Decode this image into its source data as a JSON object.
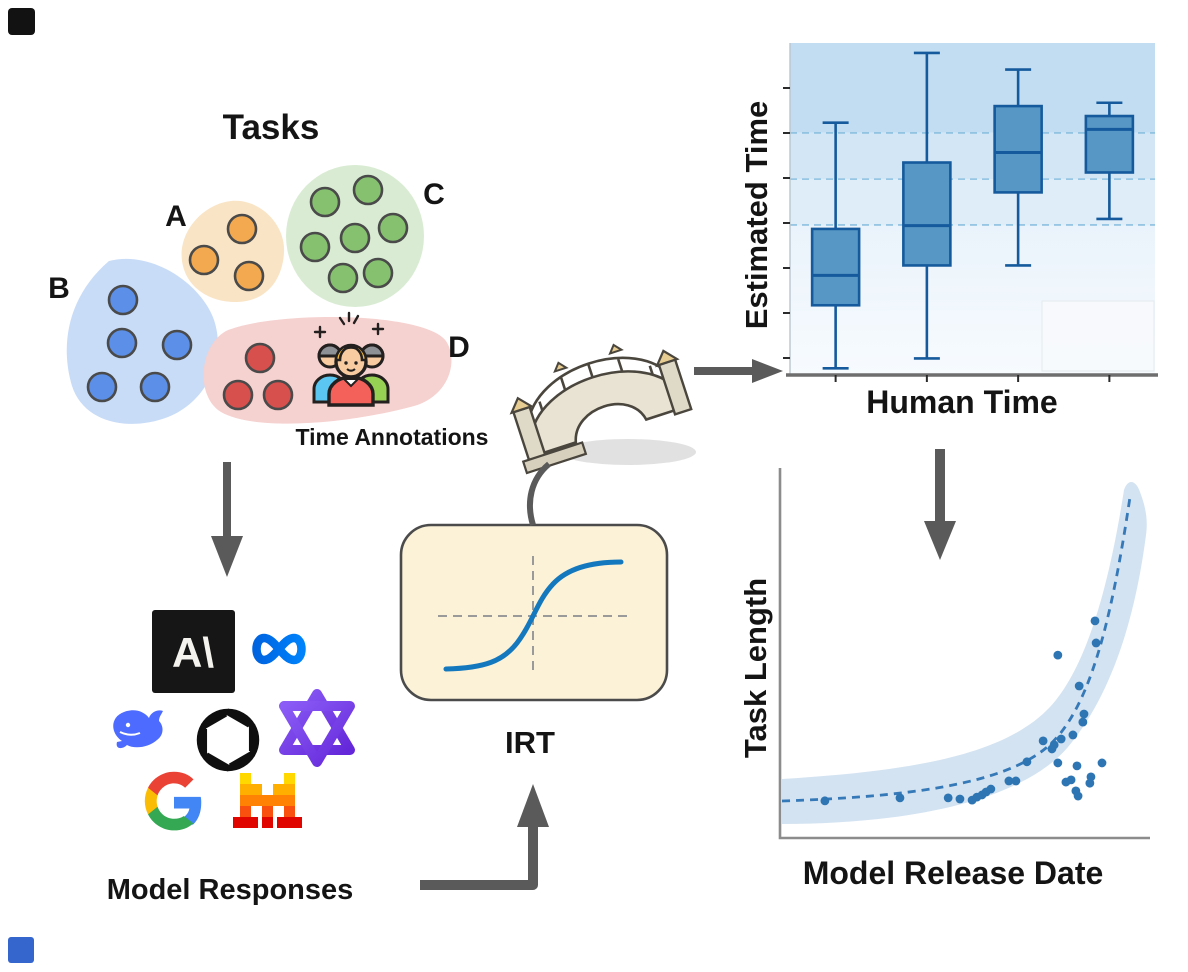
{
  "figure": {
    "tasks_title": "Tasks",
    "cluster_labels": {
      "a": "A",
      "b": "B",
      "c": "C",
      "d": "D"
    },
    "time_annotations_label": "Time Annotations",
    "model_responses_label": "Model Responses",
    "irt_label": "IRT"
  },
  "logos": {
    "names": [
      "anthropic",
      "meta",
      "deepseek",
      "openai",
      "qwen",
      "google",
      "mistral"
    ],
    "anthropic_glyph": "A\\",
    "meta_glyph": "∞"
  },
  "colors": {
    "cluster_a_blob": "#F9E4C6",
    "cluster_a_dot": "#F2A94F",
    "cluster_b_blob": "#C8DCF7",
    "cluster_b_dot": "#5B8FE8",
    "cluster_c_blob": "#D9ECD3",
    "cluster_c_dot": "#85C16F",
    "cluster_d_blob": "#F5D1CF",
    "cluster_d_dot": "#D8504D",
    "arrow_gray": "#5A5A5A",
    "irt_box_fill": "#FBF2D7",
    "sigmoid_blue": "#1478BE",
    "box_fill": "#5697C6",
    "box_stroke": "#155A9C",
    "scatter_dot": "#2E75B4",
    "trend_blue": "#3579B8",
    "band_blue": "#C8DCEE"
  },
  "diagram": {
    "clusters": [
      {
        "label": "A",
        "dot_color": "#F2A94F",
        "dots": [
          [
            242,
            229
          ],
          [
            204,
            260
          ],
          [
            249,
            276
          ]
        ]
      },
      {
        "label": "B",
        "dot_color": "#5B8FE8",
        "dots": [
          [
            123,
            300
          ],
          [
            122,
            343
          ],
          [
            177,
            345
          ],
          [
            102,
            387
          ],
          [
            155,
            387
          ]
        ]
      },
      {
        "label": "C",
        "dot_color": "#85C16F",
        "dots": [
          [
            325,
            202
          ],
          [
            368,
            190
          ],
          [
            355,
            238
          ],
          [
            393,
            228
          ],
          [
            315,
            247
          ],
          [
            343,
            278
          ],
          [
            378,
            273
          ]
        ]
      },
      {
        "label": "D",
        "dot_color": "#D8504D",
        "dots": [
          [
            260,
            358
          ],
          [
            238,
            395
          ],
          [
            278,
            395
          ]
        ]
      }
    ]
  },
  "chart_data": [
    {
      "type": "box",
      "title": "",
      "xlabel": "Human Time",
      "ylabel": "Estimated Time",
      "x_tick_labels": [],
      "y_tick_labels": [],
      "ylim": [
        0,
        1
      ],
      "gridlines_y": [
        0.452,
        0.59,
        0.729
      ],
      "grid": "dashed-horizontal",
      "background": "blue gradient, darker at top",
      "boxes": [
        {
          "whisker_low": 0.02,
          "q1": 0.21,
          "median": 0.3,
          "q3": 0.44,
          "whisker_high": 0.76
        },
        {
          "whisker_low": 0.05,
          "q1": 0.33,
          "median": 0.45,
          "q3": 0.64,
          "whisker_high": 0.97
        },
        {
          "whisker_low": 0.33,
          "q1": 0.55,
          "median": 0.67,
          "q3": 0.81,
          "whisker_high": 0.92
        },
        {
          "whisker_low": 0.47,
          "q1": 0.61,
          "median": 0.74,
          "q3": 0.78,
          "whisker_high": 0.82
        }
      ]
    },
    {
      "type": "scatter",
      "title": "",
      "xlabel": "Model Release Date",
      "ylabel": "Task Length",
      "x_tick_labels": [],
      "y_tick_labels": [],
      "trend": "exponential dashed fit with confidence band",
      "legend": "none",
      "points": [
        [
          0.122,
          0.101
        ],
        [
          0.326,
          0.109
        ],
        [
          0.457,
          0.109
        ],
        [
          0.489,
          0.106
        ],
        [
          0.522,
          0.103
        ],
        [
          0.535,
          0.111
        ],
        [
          0.549,
          0.117
        ],
        [
          0.56,
          0.125
        ],
        [
          0.573,
          0.133
        ],
        [
          0.622,
          0.155
        ],
        [
          0.641,
          0.155
        ],
        [
          0.671,
          0.207
        ],
        [
          0.715,
          0.264
        ],
        [
          0.739,
          0.242
        ],
        [
          0.745,
          0.253
        ],
        [
          0.755,
          0.204
        ],
        [
          0.764,
          0.269
        ],
        [
          0.777,
          0.152
        ],
        [
          0.791,
          0.158
        ],
        [
          0.796,
          0.28
        ],
        [
          0.804,
          0.128
        ],
        [
          0.81,
          0.114
        ],
        [
          0.807,
          0.196
        ],
        [
          0.823,
          0.315
        ],
        [
          0.826,
          0.337
        ],
        [
          0.842,
          0.149
        ],
        [
          0.845,
          0.166
        ],
        [
          0.856,
          0.59
        ],
        [
          0.859,
          0.53
        ],
        [
          0.875,
          0.204
        ],
        [
          0.755,
          0.497
        ],
        [
          0.813,
          0.413
        ]
      ]
    }
  ]
}
